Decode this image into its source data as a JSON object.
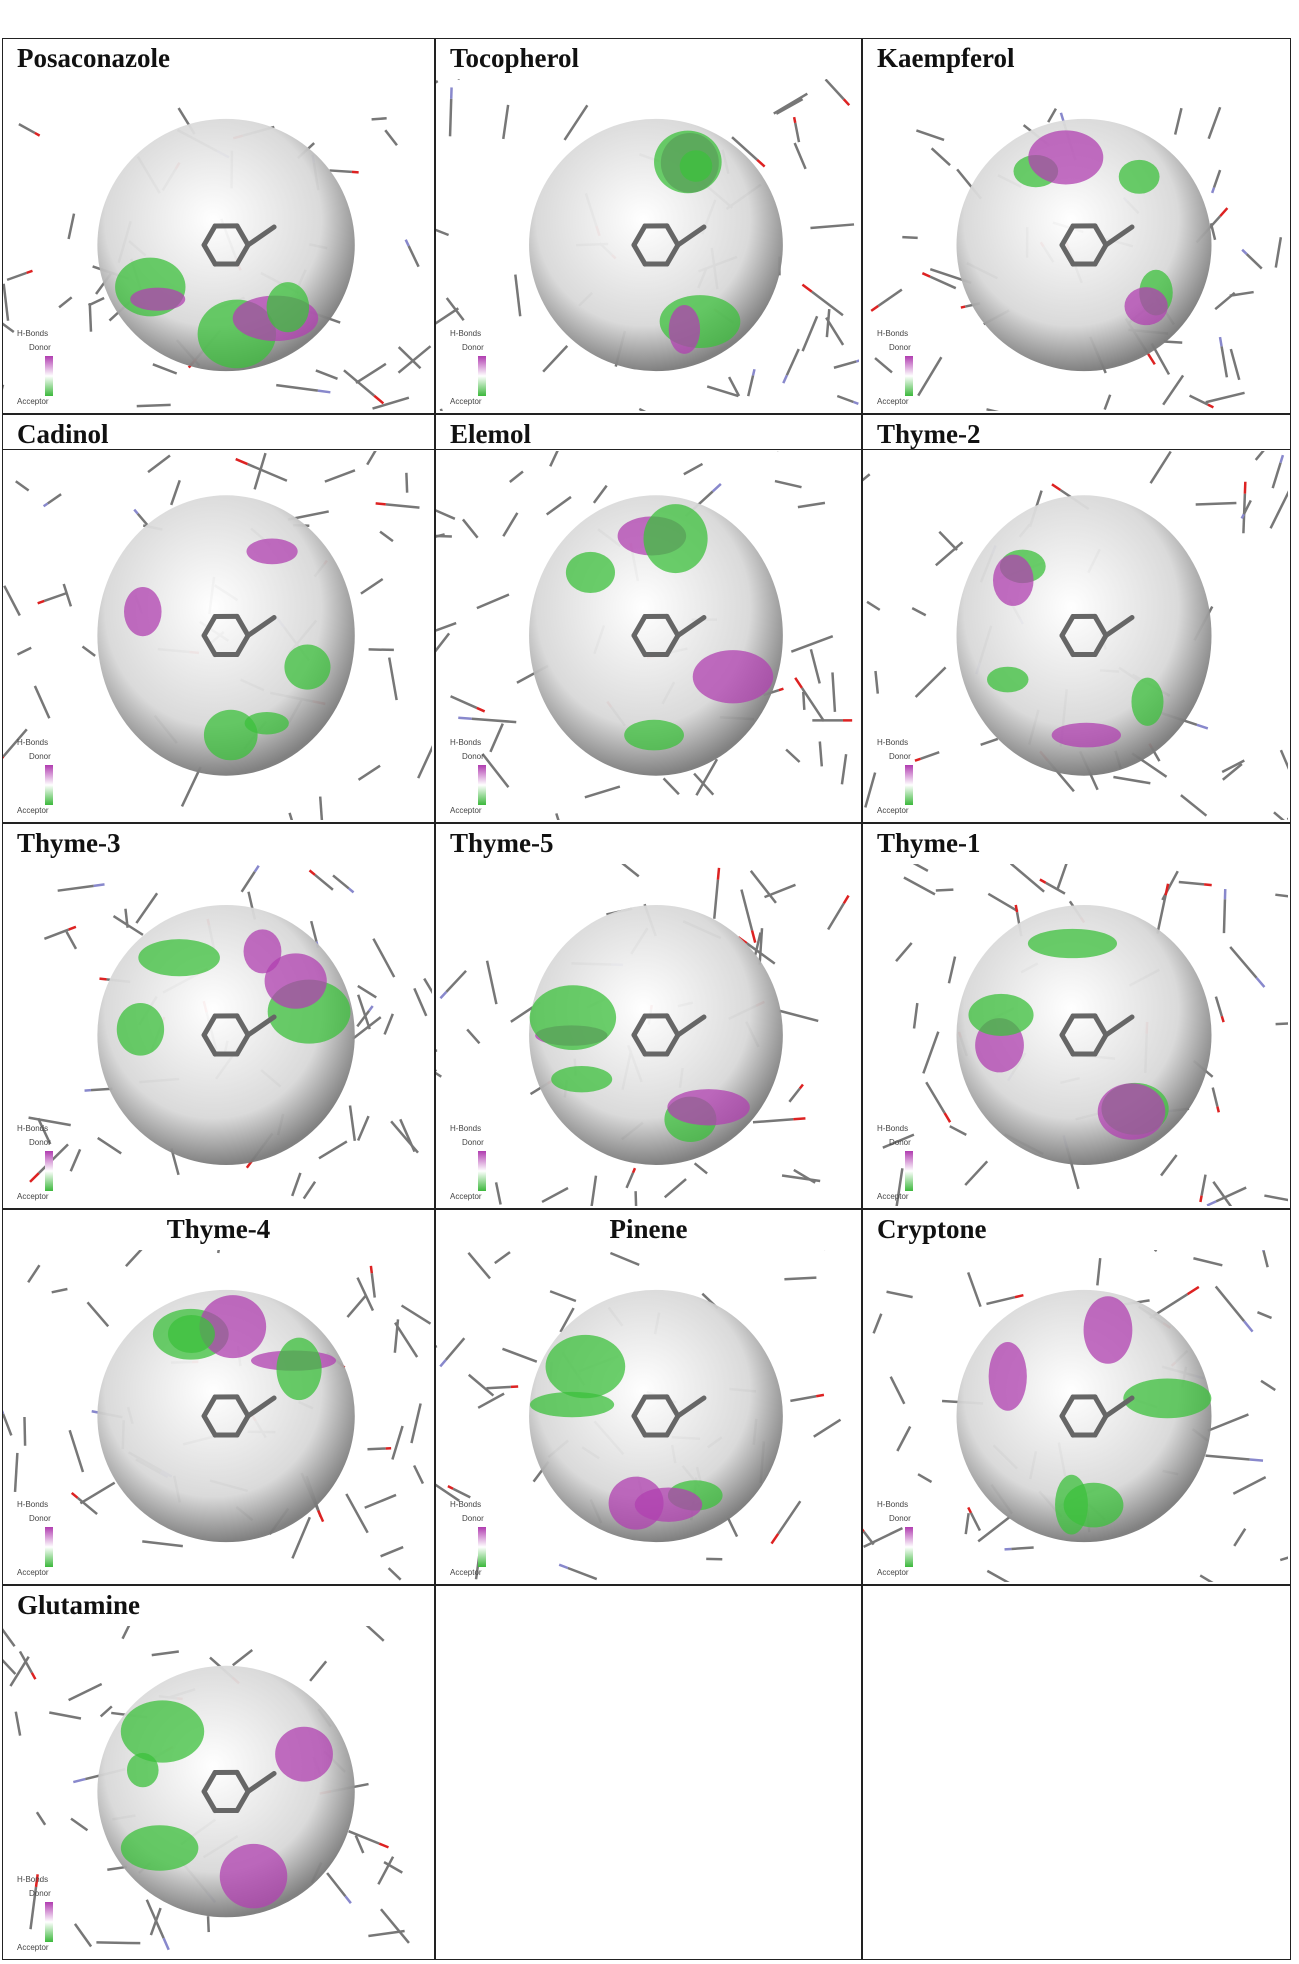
{
  "panels": [
    {
      "title": "Posaconazole",
      "legend": {
        "title": "H-Bonds",
        "donor": "Donor",
        "acceptor": "Acceptor"
      }
    },
    {
      "title": "Tocopherol",
      "legend": {
        "title": "H-Bonds",
        "donor": "Donor",
        "acceptor": "Acceptor"
      }
    },
    {
      "title": "Kaempferol",
      "legend": {
        "title": "H-Bonds",
        "donor": "Donor",
        "acceptor": "Acceptor"
      }
    },
    {
      "title": "Cadinol",
      "legend": {
        "title": "H-Bonds",
        "donor": "Donor",
        "acceptor": "Acceptor"
      }
    },
    {
      "title": "Elemol",
      "legend": {
        "title": "H-Bonds",
        "donor": "Donor",
        "acceptor": "Acceptor"
      }
    },
    {
      "title": "Thyme-2",
      "legend": {
        "title": "H-Bonds",
        "donor": "Donor",
        "acceptor": "Acceptor"
      }
    },
    {
      "title": "Thyme-3",
      "legend": {
        "title": "H-Bonds",
        "donor": "Donor",
        "acceptor": "Acceptor"
      }
    },
    {
      "title": "Thyme-5",
      "legend": {
        "title": "H-Bonds",
        "donor": "Donor",
        "acceptor": "Acceptor"
      }
    },
    {
      "title": "Thyme-1",
      "legend": {
        "title": "H-Bonds",
        "donor": "Donor",
        "acceptor": "Acceptor"
      }
    },
    {
      "title": "Thyme-4",
      "legend": {
        "title": "H-Bonds",
        "donor": "Donor",
        "acceptor": "Acceptor"
      }
    },
    {
      "title": "Pinene",
      "legend": {
        "title": "H-Bonds",
        "donor": "Donor",
        "acceptor": "Acceptor"
      }
    },
    {
      "title": "Cryptone",
      "legend": {
        "title": "H-Bonds",
        "donor": "Donor",
        "acceptor": "Acceptor"
      }
    },
    {
      "title": "Glutamine",
      "legend": {
        "title": "H-Bonds",
        "donor": "Donor",
        "acceptor": "Acceptor"
      }
    }
  ]
}
